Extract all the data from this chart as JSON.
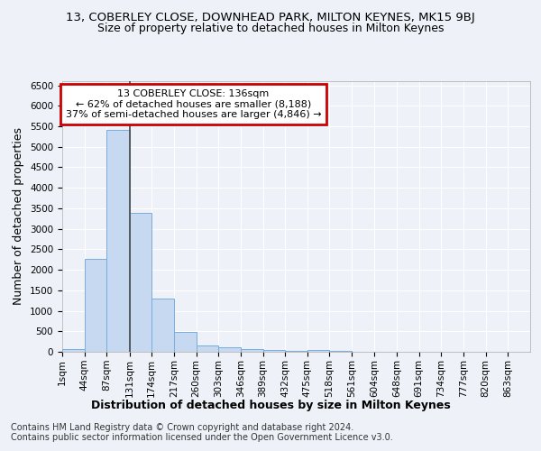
{
  "title_line1": "13, COBERLEY CLOSE, DOWNHEAD PARK, MILTON KEYNES, MK15 9BJ",
  "title_line2": "Size of property relative to detached houses in Milton Keynes",
  "xlabel": "Distribution of detached houses by size in Milton Keynes",
  "ylabel": "Number of detached properties",
  "footer_line1": "Contains HM Land Registry data © Crown copyright and database right 2024.",
  "footer_line2": "Contains public sector information licensed under the Open Government Licence v3.0.",
  "annotation_title": "13 COBERLEY CLOSE: 136sqm",
  "annotation_line1": "← 62% of detached houses are smaller (8,188)",
  "annotation_line2": "37% of semi-detached houses are larger (4,846) →",
  "bar_labels": [
    "1sqm",
    "44sqm",
    "87sqm",
    "131sqm",
    "174sqm",
    "217sqm",
    "260sqm",
    "303sqm",
    "346sqm",
    "389sqm",
    "432sqm",
    "475sqm",
    "518sqm",
    "561sqm",
    "604sqm",
    "648sqm",
    "691sqm",
    "734sqm",
    "777sqm",
    "820sqm",
    "863sqm"
  ],
  "bar_edges": [
    1,
    44,
    87,
    131,
    174,
    217,
    260,
    303,
    346,
    389,
    432,
    475,
    518,
    561,
    604,
    648,
    691,
    734,
    777,
    820,
    863,
    906
  ],
  "bar_values": [
    70,
    2270,
    5420,
    3390,
    1290,
    480,
    165,
    100,
    65,
    40,
    30,
    50,
    15,
    10,
    5,
    5,
    3,
    2,
    2,
    2,
    2
  ],
  "bar_color": "#c6d9f0",
  "bar_edge_color": "#7aaddb",
  "vline_x": 131,
  "vline_color": "#444444",
  "ylim": [
    0,
    6600
  ],
  "yticks": [
    0,
    500,
    1000,
    1500,
    2000,
    2500,
    3000,
    3500,
    4000,
    4500,
    5000,
    5500,
    6000,
    6500
  ],
  "annotation_box_edge_color": "#cc0000",
  "background_color": "#eef2f8",
  "grid_color": "#ffffff",
  "title1_fontsize": 9.5,
  "title2_fontsize": 9,
  "axis_label_fontsize": 9,
  "tick_fontsize": 7.5,
  "annotation_fontsize": 8,
  "footer_fontsize": 7
}
